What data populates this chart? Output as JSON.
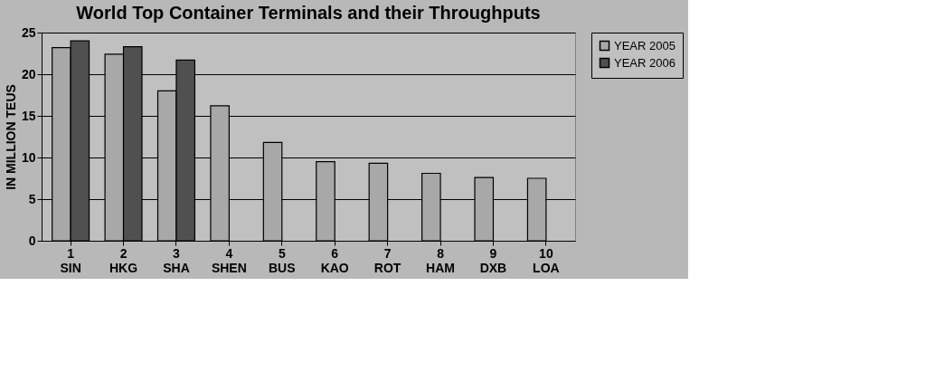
{
  "chart_data": {
    "type": "bar",
    "title": "World Top Container Terminals and their Throughputs",
    "ylabel": "IN MILLION TEUS",
    "categories": [
      "1\nSIN",
      "2\nHKG",
      "3\nSHA",
      "4\nSHEN",
      "5\nBUS",
      "6\nKAO",
      "7\nROT",
      "8\nHAM",
      "9\nDXB",
      "10\nLOA"
    ],
    "series": [
      {
        "name": "YEAR 2005",
        "color": "#a8a8a8",
        "values": [
          23.2,
          22.4,
          18.0,
          16.2,
          11.8,
          9.5,
          9.3,
          8.1,
          7.6,
          7.5
        ]
      },
      {
        "name": "YEAR 2006",
        "color": "#505050",
        "values": [
          24.0,
          23.3,
          21.7,
          null,
          null,
          null,
          null,
          null,
          null,
          null
        ]
      }
    ],
    "ylim": [
      0,
      25
    ],
    "yticks": [
      0,
      5,
      10,
      15,
      20,
      25
    ],
    "grid": "y",
    "legend": "right"
  }
}
